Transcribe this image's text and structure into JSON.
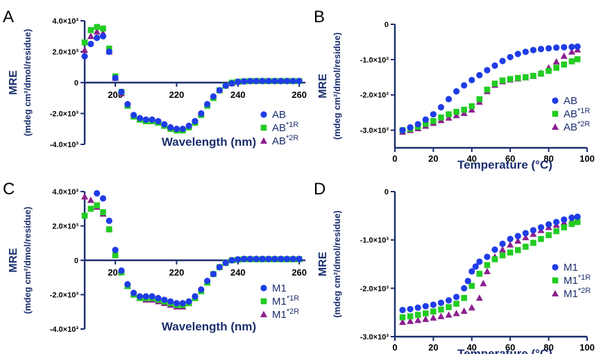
{
  "colors": {
    "AB": "#1f3ce6",
    "AB*1R": "#22cc22",
    "AB*2R": "#8b1f8e",
    "M1": "#1f3ce6",
    "M1*1R": "#22cc22",
    "M1*2R": "#8b1f8e",
    "axis": "#1a2e6e"
  },
  "chart_data": [
    {
      "panel": "A",
      "type": "scatter",
      "xlabel": "Wavelength (nm)",
      "ylabel_line1": "MRE",
      "ylabel_line2": "(mdeg cm²/dmol/residue)",
      "xlim": [
        190,
        262
      ],
      "ylim": [
        -4000,
        4000
      ],
      "xticks": [
        200,
        220,
        240,
        260
      ],
      "xticklabels": [
        "200",
        "220",
        "240",
        "260"
      ],
      "yticks": [
        4000,
        2000,
        0,
        -2000,
        -4000
      ],
      "yticklabels": [
        "4.0×10³",
        "2.0×10³",
        "0",
        "-2.0×10³",
        "-4.0×10³"
      ],
      "legend_position": "bottom-right",
      "series": [
        {
          "name": "AB",
          "label_main": "AB",
          "label_sup": "",
          "marker": "circle",
          "x": [
            190,
            192,
            194,
            196,
            198,
            200,
            202,
            204,
            206,
            208,
            210,
            212,
            214,
            216,
            218,
            220,
            222,
            224,
            226,
            228,
            230,
            232,
            234,
            236,
            238,
            240,
            242,
            244,
            246,
            248,
            250,
            252,
            254,
            256,
            258,
            260
          ],
          "y": [
            1700,
            2500,
            2900,
            3000,
            2000,
            300,
            -600,
            -1400,
            -2100,
            -2300,
            -2400,
            -2400,
            -2500,
            -2700,
            -2900,
            -3000,
            -3000,
            -2800,
            -2500,
            -2000,
            -1400,
            -900,
            -500,
            -200,
            -50,
            50,
            80,
            100,
            100,
            100,
            100,
            100,
            100,
            100,
            100,
            100
          ]
        },
        {
          "name": "AB*1R",
          "label_main": "AB",
          "label_sup": "*1R",
          "marker": "square",
          "x": [
            190,
            192,
            194,
            196,
            198,
            200,
            202,
            204,
            206,
            208,
            210,
            212,
            214,
            216,
            218,
            220,
            222,
            224,
            226,
            228,
            230,
            232,
            234,
            236,
            238,
            240,
            242,
            244,
            246,
            248,
            250,
            252,
            254,
            256,
            258,
            260
          ],
          "y": [
            2600,
            3400,
            3600,
            3500,
            2200,
            400,
            -600,
            -1500,
            -2200,
            -2400,
            -2500,
            -2500,
            -2600,
            -2800,
            -3000,
            -3100,
            -3100,
            -2900,
            -2600,
            -2100,
            -1500,
            -1000,
            -500,
            -200,
            0,
            60,
            80,
            100,
            100,
            100,
            100,
            100,
            100,
            100,
            100,
            100
          ]
        },
        {
          "name": "AB*2R",
          "label_main": "AB",
          "label_sup": "*2R",
          "marker": "triangle",
          "x": [
            190,
            192,
            194,
            196,
            198,
            200,
            202,
            204,
            206,
            208,
            210,
            212,
            214,
            216,
            218,
            220,
            222,
            224,
            226,
            228,
            230,
            232,
            234,
            236,
            238,
            240,
            242,
            244,
            246,
            248,
            250,
            252,
            254,
            256,
            258,
            260
          ],
          "y": [
            2100,
            3000,
            3300,
            3200,
            2000,
            300,
            -700,
            -1500,
            -2200,
            -2400,
            -2500,
            -2500,
            -2600,
            -2800,
            -2900,
            -3000,
            -3000,
            -2800,
            -2500,
            -2000,
            -1400,
            -900,
            -500,
            -200,
            -50,
            40,
            70,
            90,
            100,
            100,
            100,
            100,
            100,
            100,
            100,
            100
          ]
        }
      ]
    },
    {
      "panel": "B",
      "type": "scatter",
      "xlabel": "Temperature (°C)",
      "ylabel_line1": "MRE",
      "ylabel_line2": "(mdeg cm²/dmol/residue)",
      "xlim": [
        0,
        100
      ],
      "ylim": [
        -3500,
        0
      ],
      "xticks": [
        0,
        20,
        40,
        60,
        80,
        100
      ],
      "xticklabels": [
        "0",
        "20",
        "40",
        "60",
        "80",
        "100"
      ],
      "yticks": [
        0,
        -1000,
        -2000,
        -3000
      ],
      "yticklabels": [
        "0",
        "-1.0×10³",
        "-2.0×10³",
        "-3.0×10³"
      ],
      "legend_position": "bottom-right",
      "series": [
        {
          "name": "AB",
          "label_main": "AB",
          "label_sup": "",
          "marker": "circle",
          "x": [
            4,
            8,
            12,
            16,
            20,
            24,
            28,
            32,
            36,
            40,
            44,
            48,
            52,
            56,
            60,
            64,
            68,
            72,
            76,
            80,
            84,
            88,
            92,
            95
          ],
          "y": [
            -3000,
            -2920,
            -2830,
            -2700,
            -2550,
            -2350,
            -2120,
            -1900,
            -1730,
            -1580,
            -1440,
            -1300,
            -1170,
            -1040,
            -930,
            -840,
            -780,
            -730,
            -700,
            -680,
            -660,
            -650,
            -640,
            -630
          ]
        },
        {
          "name": "AB*1R",
          "label_main": "AB",
          "label_sup": "*1R",
          "marker": "square",
          "x": [
            4,
            8,
            12,
            16,
            20,
            24,
            28,
            32,
            36,
            40,
            44,
            48,
            52,
            56,
            60,
            64,
            68,
            72,
            76,
            80,
            84,
            88,
            92,
            95
          ],
          "y": [
            -3000,
            -2960,
            -2900,
            -2820,
            -2740,
            -2640,
            -2550,
            -2480,
            -2420,
            -2320,
            -2120,
            -1850,
            -1680,
            -1590,
            -1550,
            -1520,
            -1500,
            -1460,
            -1400,
            -1320,
            -1230,
            -1140,
            -1050,
            -990
          ]
        },
        {
          "name": "AB*2R",
          "label_main": "AB",
          "label_sup": "*2R",
          "marker": "triangle",
          "x": [
            4,
            8,
            12,
            16,
            20,
            24,
            28,
            32,
            36,
            40,
            44,
            48,
            52,
            56,
            60,
            64,
            68,
            72,
            76,
            80,
            84,
            88,
            92,
            95
          ],
          "y": [
            -3050,
            -3000,
            -2950,
            -2880,
            -2800,
            -2720,
            -2650,
            -2580,
            -2520,
            -2420,
            -2200,
            -1900,
            -1720,
            -1620,
            -1570,
            -1540,
            -1510,
            -1470,
            -1380,
            -1230,
            -1060,
            -900,
            -780,
            -720
          ]
        }
      ]
    },
    {
      "panel": "C",
      "type": "scatter",
      "xlabel": "Wavelength (nm)",
      "ylabel_line1": "MRE",
      "ylabel_line2": "(mdeg cm²/dmol/residue)",
      "xlim": [
        190,
        262
      ],
      "ylim": [
        -4000,
        4000
      ],
      "xticks": [
        200,
        220,
        240,
        260
      ],
      "xticklabels": [
        "200",
        "220",
        "240",
        "260"
      ],
      "yticks": [
        4000,
        2000,
        0,
        -2000,
        -4000
      ],
      "yticklabels": [
        "4.0×10³",
        "2.0×10³",
        "0",
        "-2.0×10³",
        "-4.0×10³"
      ],
      "legend_position": "bottom-right",
      "series": [
        {
          "name": "M1",
          "label_main": "M1",
          "label_sup": "",
          "marker": "circle",
          "x": [
            194,
            196,
            198,
            200,
            202,
            204,
            206,
            208,
            210,
            212,
            214,
            216,
            218,
            220,
            222,
            224,
            226,
            228,
            230,
            232,
            234,
            236,
            238,
            240,
            242,
            244,
            246,
            248,
            250,
            252,
            254,
            256,
            258,
            260
          ],
          "y": [
            3900,
            3600,
            2300,
            600,
            -600,
            -1400,
            -1900,
            -2100,
            -2100,
            -2100,
            -2200,
            -2300,
            -2400,
            -2500,
            -2500,
            -2400,
            -2100,
            -1700,
            -1200,
            -800,
            -400,
            -150,
            0,
            50,
            80,
            80,
            80,
            80,
            80,
            80,
            80,
            80,
            80,
            80
          ]
        },
        {
          "name": "M1*1R",
          "label_main": "M1",
          "label_sup": "*1R",
          "marker": "square",
          "x": [
            190,
            192,
            194,
            196,
            198,
            200,
            202,
            204,
            206,
            208,
            210,
            212,
            214,
            216,
            218,
            220,
            222,
            224,
            226,
            228,
            230,
            232,
            234,
            236,
            238,
            240,
            242,
            244,
            246,
            248,
            250,
            252,
            254,
            256,
            258,
            260
          ],
          "y": [
            2600,
            3000,
            3200,
            2800,
            1800,
            300,
            -700,
            -1500,
            -2000,
            -2200,
            -2200,
            -2200,
            -2300,
            -2400,
            -2500,
            -2600,
            -2600,
            -2500,
            -2200,
            -1800,
            -1300,
            -800,
            -400,
            -150,
            0,
            40,
            60,
            60,
            60,
            60,
            60,
            60,
            60,
            60,
            60,
            60
          ]
        },
        {
          "name": "M1*2R",
          "label_main": "M1",
          "label_sup": "*2R",
          "marker": "triangle",
          "x": [
            190,
            192,
            194,
            196,
            198,
            200,
            202,
            204,
            206,
            208,
            210,
            212,
            214,
            216,
            218,
            220,
            222,
            224,
            226,
            228,
            230,
            232,
            234,
            236,
            238,
            240,
            242,
            244,
            246,
            248,
            250,
            252,
            254,
            256,
            258,
            260
          ],
          "y": [
            3700,
            3500,
            3100,
            2700,
            1800,
            300,
            -700,
            -1500,
            -2000,
            -2200,
            -2300,
            -2300,
            -2400,
            -2500,
            -2600,
            -2700,
            -2700,
            -2500,
            -2200,
            -1800,
            -1300,
            -800,
            -400,
            -150,
            0,
            40,
            60,
            60,
            60,
            60,
            60,
            60,
            60,
            60,
            60,
            60
          ]
        }
      ]
    },
    {
      "panel": "D",
      "type": "scatter",
      "xlabel": "Temperature (°C)",
      "ylabel_line1": "MRE",
      "ylabel_line2": "(mdeg cm²/dmol/residue)",
      "xlim": [
        0,
        100
      ],
      "ylim": [
        -3000,
        0
      ],
      "xticks": [
        0,
        20,
        40,
        60,
        80,
        100
      ],
      "xticklabels": [
        "0",
        "20",
        "40",
        "60",
        "80",
        "100"
      ],
      "yticks": [
        0,
        -1000,
        -2000,
        -3000
      ],
      "yticklabels": [
        "0",
        "-1.0×10³",
        "-2.0×10³",
        "-3.0×10³"
      ],
      "legend_position": "bottom-right",
      "series": [
        {
          "name": "M1",
          "label_main": "M1",
          "label_sup": "",
          "marker": "circle",
          "x": [
            4,
            8,
            12,
            16,
            20,
            24,
            28,
            32,
            36,
            38,
            40,
            42,
            44,
            48,
            52,
            56,
            60,
            64,
            68,
            72,
            76,
            80,
            84,
            88,
            92,
            95
          ],
          "y": [
            -2450,
            -2430,
            -2400,
            -2370,
            -2340,
            -2300,
            -2250,
            -2180,
            -2000,
            -1850,
            -1650,
            -1550,
            -1450,
            -1350,
            -1200,
            -1080,
            -980,
            -920,
            -860,
            -800,
            -740,
            -680,
            -630,
            -580,
            -540,
            -520
          ]
        },
        {
          "name": "M1*1R",
          "label_main": "M1",
          "label_sup": "*1R",
          "marker": "square",
          "x": [
            4,
            8,
            12,
            16,
            20,
            24,
            28,
            32,
            36,
            40,
            44,
            48,
            52,
            56,
            60,
            64,
            68,
            72,
            76,
            80,
            84,
            88,
            92,
            95
          ],
          "y": [
            -2600,
            -2580,
            -2550,
            -2520,
            -2480,
            -2440,
            -2390,
            -2320,
            -2200,
            -1950,
            -1700,
            -1520,
            -1400,
            -1320,
            -1260,
            -1210,
            -1140,
            -1060,
            -980,
            -900,
            -820,
            -740,
            -670,
            -630
          ]
        },
        {
          "name": "M1*2R",
          "label_main": "M1",
          "label_sup": "*2R",
          "marker": "triangle",
          "x": [
            4,
            8,
            12,
            16,
            20,
            24,
            28,
            32,
            36,
            40,
            44,
            46,
            48,
            52,
            56,
            60,
            64,
            68,
            72,
            76,
            80,
            84,
            88,
            92,
            95
          ],
          "y": [
            -2700,
            -2680,
            -2660,
            -2640,
            -2610,
            -2580,
            -2550,
            -2520,
            -2470,
            -2400,
            -2200,
            -1900,
            -1650,
            -1350,
            -1200,
            -1100,
            -1020,
            -950,
            -880,
            -800,
            -740,
            -690,
            -640,
            -600,
            -580
          ]
        }
      ]
    }
  ]
}
